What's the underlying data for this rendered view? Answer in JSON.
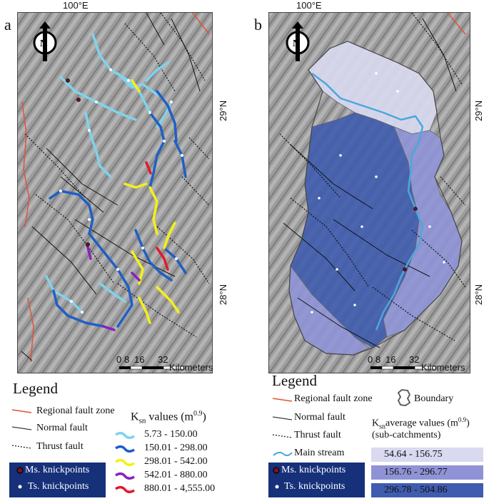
{
  "panel_a": {
    "label": "a",
    "coords": {
      "lon": "100°E",
      "lat_top": "29°N",
      "lat_bottom": "28°N"
    },
    "north": "N",
    "scale": {
      "ticks": [
        "0",
        "8",
        "16",
        "32"
      ],
      "unit": "Kilometers"
    },
    "legend": {
      "title": "Legend",
      "items": [
        {
          "label": "Regional fault zone",
          "color": "#e0533a"
        },
        {
          "label": "Normal fault",
          "color": "#111111"
        },
        {
          "label": "Thrust fault",
          "color": "#111111"
        }
      ],
      "knickpoints": [
        "Ms. knickpoints",
        "Ts. knickpoints"
      ],
      "ksn_title": "K",
      "ksn_sub": "sn",
      "ksn_rest": " values (m",
      "ksn_exp": "0.9",
      "ksn_close": ")",
      "classes": [
        {
          "range": "5.73    - 150.00",
          "color": "#7fd3ec"
        },
        {
          "range": "150.01 - 298.00",
          "color": "#1e5fc7"
        },
        {
          "range": "298.01 - 542.00",
          "color": "#f4f01a"
        },
        {
          "range": "542.01 - 880.00",
          "color": "#8b1fc2"
        },
        {
          "range": "880.01 - 4,555.00",
          "color": "#e3192d"
        }
      ]
    }
  },
  "panel_b": {
    "label": "b",
    "coords": {
      "lon": "100°E",
      "lat_top": "29°N",
      "lat_bottom": "28°N"
    },
    "north": "N",
    "scale": {
      "ticks": [
        "0",
        "8",
        "16",
        "32"
      ],
      "unit": "Kilometers"
    },
    "legend": {
      "title": "Legend",
      "items": [
        {
          "label": "Regional fault zone",
          "color": "#e0533a"
        },
        {
          "label": "Normal fault",
          "color": "#111111"
        },
        {
          "label": "Thrust fault",
          "color": "#111111"
        },
        {
          "label": "Main stream",
          "color": "#4aa8dc"
        }
      ],
      "boundary": "Boundary",
      "knickpoints": [
        "Ms. knickpoints",
        "Ts. knickpoints"
      ],
      "ksn_title": "K",
      "ksn_sub": "sn",
      "ksn_rest": "average values (m",
      "ksn_exp": "0.9",
      "ksn_close": ")",
      "ksn_note": "(sub-catchments)",
      "classes": [
        {
          "range": "54.64  - 156.75",
          "color": "#d9d9f0"
        },
        {
          "range": "156.76 - 296.77",
          "color": "#8f93d6"
        },
        {
          "range": "296.78 - 504.86",
          "color": "#3f5cae"
        }
      ]
    }
  }
}
